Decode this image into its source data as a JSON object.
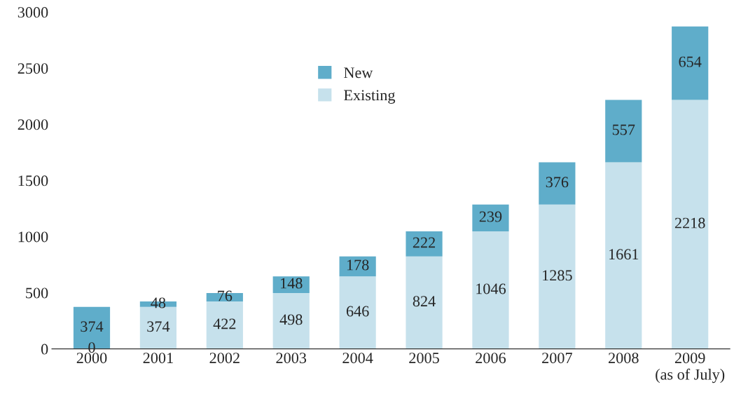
{
  "chart_data": {
    "type": "bar",
    "stacked": true,
    "categories": [
      "2000",
      "2001",
      "2002",
      "2003",
      "2004",
      "2005",
      "2006",
      "2007",
      "2008",
      "2009\n(as of July)"
    ],
    "series": [
      {
        "name": "Existing",
        "color": "#c6e1ec",
        "values": [
          0,
          374,
          422,
          498,
          646,
          824,
          1046,
          1285,
          1661,
          2218
        ]
      },
      {
        "name": "New",
        "color": "#5fadca",
        "values": [
          374,
          48,
          76,
          148,
          178,
          222,
          239,
          376,
          557,
          654
        ]
      }
    ],
    "ylim": [
      0,
      3000
    ],
    "yticks": [
      0,
      500,
      1000,
      1500,
      2000,
      2500,
      3000
    ],
    "data_labels": true,
    "grid": false,
    "legend": "top"
  }
}
